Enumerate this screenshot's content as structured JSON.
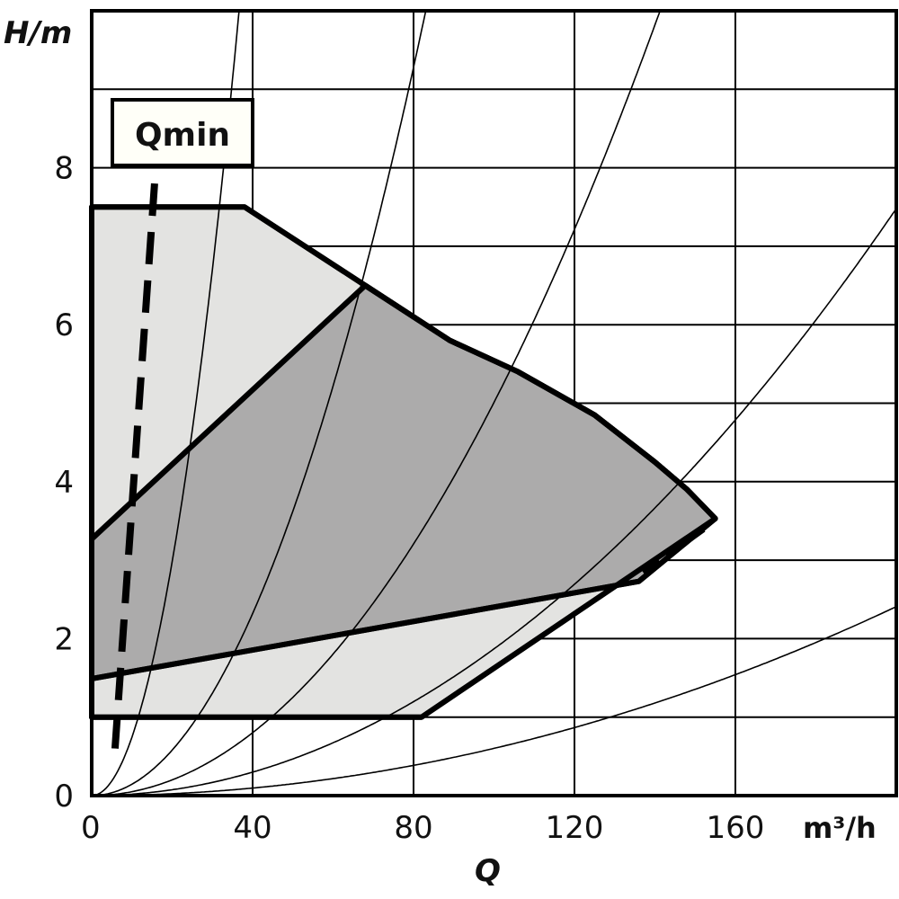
{
  "chart_data": {
    "type": "area",
    "title": "",
    "xlabel": "Q",
    "xunit": "m³/h",
    "ylabel": "H/m",
    "xlim": [
      0,
      200
    ],
    "ylim": [
      0,
      10
    ],
    "grid": true,
    "x_ticks": [
      0,
      40,
      80,
      120,
      160
    ],
    "y_ticks": [
      0,
      2,
      4,
      6,
      8
    ],
    "x_grid_step": 40,
    "y_grid_step": 1,
    "colors": {
      "light_region": "#e3e3e1",
      "dark_region": "#acabab",
      "lines": "#000000",
      "label_box": "#fffff8"
    },
    "regions": [
      {
        "shade": "light",
        "points": [
          [
            0,
            7.5
          ],
          [
            38,
            7.5
          ],
          [
            68,
            6.5
          ],
          [
            89,
            5.8
          ],
          [
            106,
            5.4
          ],
          [
            125,
            4.85
          ],
          [
            140,
            4.25
          ],
          [
            148,
            3.9
          ],
          [
            155,
            3.53
          ],
          [
            82,
            1.0
          ],
          [
            0,
            1.0
          ]
        ]
      },
      {
        "shade": "dark",
        "points": [
          [
            0,
            3.27
          ],
          [
            68,
            6.5
          ],
          [
            89,
            5.8
          ],
          [
            106,
            5.4
          ],
          [
            125,
            4.85
          ],
          [
            140,
            4.25
          ],
          [
            148,
            3.9
          ],
          [
            155,
            3.53
          ],
          [
            136,
            2.73
          ],
          [
            0,
            1.49
          ]
        ]
      }
    ],
    "system_curves_k": [
      0.00745,
      0.00145,
      0.000501,
      0.000187,
      6.02e-05
    ],
    "qmin_line": {
      "label": "Qmin",
      "points": [
        [
          5.8,
          0.6
        ],
        [
          15.9,
          8.0
        ]
      ]
    },
    "dashed_segment": [
      [
        137,
        2.85
      ],
      [
        152,
        3.4
      ]
    ]
  }
}
